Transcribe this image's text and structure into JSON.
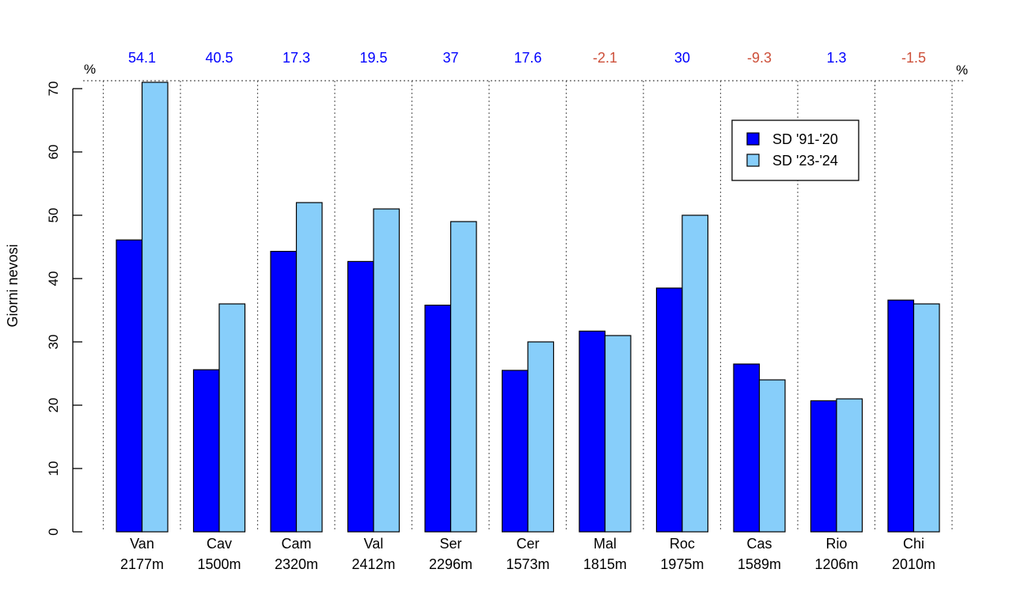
{
  "chart_data": {
    "type": "bar",
    "ylabel": "Giorni nevosi",
    "ylim": [
      0,
      70
    ],
    "yticks": [
      0,
      10,
      20,
      30,
      40,
      50,
      60,
      70
    ],
    "categories": [
      {
        "name": "Van",
        "elevation": "2177m"
      },
      {
        "name": "Cav",
        "elevation": "1500m"
      },
      {
        "name": "Cam",
        "elevation": "2320m"
      },
      {
        "name": "Val",
        "elevation": "2412m"
      },
      {
        "name": "Ser",
        "elevation": "2296m"
      },
      {
        "name": "Cer",
        "elevation": "1573m"
      },
      {
        "name": "Mal",
        "elevation": "1815m"
      },
      {
        "name": "Roc",
        "elevation": "1975m"
      },
      {
        "name": "Cas",
        "elevation": "1589m"
      },
      {
        "name": "Rio",
        "elevation": "1206m"
      },
      {
        "name": "Chi",
        "elevation": "2010m"
      }
    ],
    "series": [
      {
        "name": "SD '91-'20",
        "color": "#0000ff",
        "values": [
          46.1,
          25.6,
          44.3,
          42.7,
          35.8,
          25.5,
          31.7,
          38.5,
          26.5,
          20.7,
          36.6
        ]
      },
      {
        "name": "SD '23-'24",
        "color": "#87cefa",
        "values": [
          71,
          36,
          52,
          51,
          49,
          30,
          31,
          50,
          24,
          21,
          36
        ]
      }
    ],
    "percent_changes": [
      "54.1",
      "40.5",
      "17.3",
      "19.5",
      "37",
      "17.6",
      "-2.1",
      "30",
      "-9.3",
      "1.3",
      "-1.5"
    ],
    "percent_symbol": "%",
    "percent_colors": {
      "positive": "#0000ff",
      "negative": "#cd4f39"
    },
    "legend_position": "top-right",
    "grid": "vertical dotted separators between groups"
  }
}
